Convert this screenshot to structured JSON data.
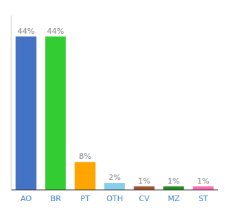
{
  "chart_data": {
    "type": "bar",
    "categories": [
      "AO",
      "BR",
      "PT",
      "OTH",
      "CV",
      "MZ",
      "ST"
    ],
    "values": [
      44,
      44,
      8,
      2,
      1,
      1,
      1
    ],
    "value_labels": [
      "44%",
      "44%",
      "8%",
      "2%",
      "1%",
      "1%",
      "1%"
    ],
    "colors": [
      "#4472c4",
      "#33cc33",
      "#ffa500",
      "#87ceeb",
      "#a0522d",
      "#228b22",
      "#ff69b4"
    ],
    "ylim": [
      0,
      50
    ],
    "data_labels": true,
    "tick_labels": "x"
  }
}
